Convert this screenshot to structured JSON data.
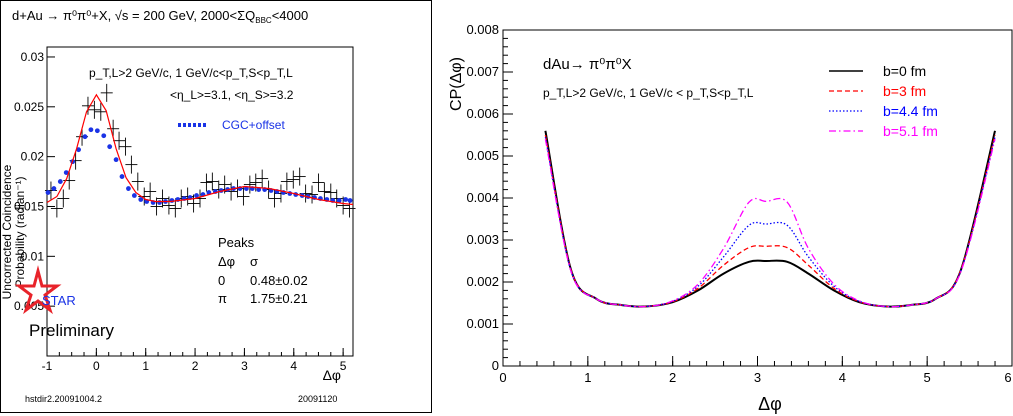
{
  "colors": {
    "black": "#000000",
    "red": "#ff0000",
    "blue": "#0000ff",
    "magenta": "#ff00ff",
    "cgc_points": "#1a33e6",
    "star": "#e8232a"
  },
  "left": {
    "header": "d+Au → π⁰π⁰+X, √s = 200 GeV, 2000<ΣQ",
    "header_sub": "BBC",
    "header_tail": "<4000",
    "ylabel_line1": "Uncorrected Coincidence",
    "ylabel_line2": "Probability (radian⁻¹)",
    "xlabel": "Δφ",
    "cut_line1": "p_T,L>2 GeV/c, 1 GeV/c<p_T,S<p_T,L",
    "cut_line2": "<η_L>=3.1, <η_S>=3.2",
    "legend_cgc": "CGC+offset",
    "peaks_title": "Peaks",
    "peaks_header": [
      "Δφ",
      "σ"
    ],
    "peaks_rows": [
      [
        "0",
        "0.48±0.02"
      ],
      [
        "π",
        "1.75±0.21"
      ]
    ],
    "logo_text": "STAR",
    "preliminary": "Preliminary",
    "footer_left": "hstdir2.20091004.2",
    "footer_right": "20091120"
  },
  "right": {
    "title": "dAu→ π⁰π⁰X",
    "subtitle": "p_T,L>2 GeV/c, 1 GeV/c < p_T,S<p_T,L",
    "ylabel": "CP(Δφ)",
    "xlabel": "Δφ"
  },
  "chart_data": [
    {
      "type": "scatter",
      "xlim": [
        -1,
        5.2
      ],
      "ylim": [
        0,
        0.031
      ],
      "x_ticks": [
        "-1",
        "0",
        "1",
        "2",
        "3",
        "4",
        "5"
      ],
      "y_ticks": [
        "0.005",
        "0.01",
        "0.015",
        "0.02",
        "0.025",
        "0.03"
      ],
      "series": [
        {
          "name": "data",
          "style": "crosses",
          "x": [
            -0.92,
            -0.8,
            -0.67,
            -0.55,
            -0.42,
            -0.29,
            -0.17,
            -0.04,
            0.09,
            0.21,
            0.34,
            0.46,
            0.59,
            0.71,
            0.84,
            0.97,
            1.09,
            1.22,
            1.34,
            1.47,
            1.6,
            1.72,
            1.85,
            1.97,
            2.1,
            2.23,
            2.35,
            2.48,
            2.6,
            2.73,
            2.86,
            2.98,
            3.11,
            3.23,
            3.36,
            3.49,
            3.61,
            3.74,
            3.86,
            3.99,
            4.12,
            4.24,
            4.37,
            4.5,
            4.62,
            4.75,
            4.87,
            5.0,
            5.13
          ],
          "y": [
            0.0166,
            0.0148,
            0.0158,
            0.0176,
            0.0196,
            0.022,
            0.0251,
            0.0247,
            0.0245,
            0.0264,
            0.0228,
            0.0216,
            0.021,
            0.0192,
            0.0175,
            0.016,
            0.0165,
            0.015,
            0.0158,
            0.0151,
            0.0148,
            0.0158,
            0.016,
            0.0153,
            0.0158,
            0.0174,
            0.0175,
            0.0167,
            0.0172,
            0.0165,
            0.0168,
            0.016,
            0.0172,
            0.0174,
            0.0178,
            0.0167,
            0.0158,
            0.0163,
            0.0175,
            0.0177,
            0.018,
            0.0163,
            0.0162,
            0.0174,
            0.0165,
            0.0164,
            0.0158,
            0.0151,
            0.0148
          ]
        },
        {
          "name": "CGC+offset",
          "style": "points",
          "x": [
            -0.98,
            -0.86,
            -0.73,
            -0.61,
            -0.48,
            -0.36,
            -0.23,
            -0.11,
            0.02,
            0.15,
            0.27,
            0.4,
            0.52,
            0.65,
            0.77,
            0.9,
            1.02,
            1.15,
            1.28,
            1.4,
            1.53,
            1.65,
            1.78,
            1.9,
            2.03,
            2.16,
            2.28,
            2.41,
            2.53,
            2.66,
            2.78,
            2.91,
            3.04,
            3.16,
            3.29,
            3.41,
            3.54,
            3.66,
            3.79,
            3.92,
            4.04,
            4.17,
            4.29,
            4.42,
            4.54,
            4.67,
            4.79,
            4.92,
            5.05,
            5.14
          ],
          "y": [
            0.0164,
            0.0168,
            0.0175,
            0.0184,
            0.0195,
            0.0207,
            0.022,
            0.0227,
            0.0226,
            0.0221,
            0.021,
            0.0197,
            0.018,
            0.0168,
            0.0161,
            0.0157,
            0.0155,
            0.0154,
            0.0154,
            0.0155,
            0.0156,
            0.0157,
            0.0158,
            0.0159,
            0.0161,
            0.0162,
            0.0164,
            0.0165,
            0.0166,
            0.0167,
            0.0168,
            0.0168,
            0.0168,
            0.0168,
            0.0167,
            0.0167,
            0.0166,
            0.0165,
            0.0164,
            0.0163,
            0.0162,
            0.0161,
            0.016,
            0.0159,
            0.0158,
            0.0157,
            0.0156,
            0.0156,
            0.0157,
            0.0156
          ]
        },
        {
          "name": "fit",
          "style": "line",
          "x": [
            -1,
            -0.8,
            -0.6,
            -0.4,
            -0.2,
            0,
            0.2,
            0.4,
            0.6,
            0.8,
            1,
            1.2,
            1.5,
            2,
            2.5,
            3,
            3.5,
            4,
            4.5,
            5,
            5.2
          ],
          "y": [
            0.0154,
            0.016,
            0.0178,
            0.0208,
            0.0245,
            0.0262,
            0.0246,
            0.0208,
            0.0179,
            0.0164,
            0.0157,
            0.0155,
            0.0155,
            0.0158,
            0.0165,
            0.017,
            0.0168,
            0.0163,
            0.0157,
            0.0153,
            0.0152
          ]
        }
      ]
    },
    {
      "type": "line",
      "xlim": [
        0,
        6
      ],
      "ylim": [
        0,
        0.008
      ],
      "x_ticks": [
        "0",
        "1",
        "2",
        "3",
        "4",
        "5",
        "6"
      ],
      "y_ticks": [
        "0.001",
        "0.002",
        "0.003",
        "0.004",
        "0.005",
        "0.006",
        "0.007",
        "0.008"
      ],
      "series": [
        {
          "name": "b=0 fm",
          "color": "#000000",
          "dash": "solid",
          "x": [
            0.5,
            0.8,
            1.1,
            1.4,
            1.7,
            2.0,
            2.3,
            2.6,
            2.9,
            3.1,
            3.35,
            3.6,
            3.9,
            4.2,
            4.5,
            4.8,
            5.1,
            5.4,
            5.8
          ],
          "y": [
            0.0056,
            0.0023,
            0.0016,
            0.00145,
            0.00142,
            0.00152,
            0.0018,
            0.0022,
            0.00248,
            0.0025,
            0.00248,
            0.0022,
            0.0018,
            0.00152,
            0.00142,
            0.00145,
            0.0016,
            0.0023,
            0.0056
          ]
        },
        {
          "name": "b=3 fm",
          "color": "#ff0000",
          "dash": "dashed",
          "x": [
            0.5,
            0.8,
            1.1,
            1.4,
            1.7,
            2.0,
            2.3,
            2.6,
            2.9,
            3.1,
            3.35,
            3.6,
            3.9,
            4.2,
            4.5,
            4.8,
            5.1,
            5.4,
            5.8
          ],
          "y": [
            0.0055,
            0.0023,
            0.0016,
            0.00145,
            0.00142,
            0.00153,
            0.00185,
            0.0024,
            0.00282,
            0.00285,
            0.00282,
            0.0024,
            0.00185,
            0.00153,
            0.00142,
            0.00145,
            0.0016,
            0.0023,
            0.0055
          ]
        },
        {
          "name": "b=4.4 fm",
          "color": "#0000ff",
          "dash": "dotted",
          "x": [
            0.5,
            0.8,
            1.1,
            1.4,
            1.7,
            2.0,
            2.3,
            2.6,
            2.9,
            3.1,
            3.35,
            3.6,
            3.9,
            4.2,
            4.5,
            4.8,
            5.1,
            5.4,
            5.8
          ],
          "y": [
            0.00545,
            0.00228,
            0.0016,
            0.00145,
            0.00142,
            0.00154,
            0.0019,
            0.0026,
            0.00335,
            0.00338,
            0.00335,
            0.0026,
            0.0019,
            0.00154,
            0.00142,
            0.00145,
            0.0016,
            0.00228,
            0.00545
          ]
        },
        {
          "name": "b=5.1 fm",
          "color": "#ff00ff",
          "dash": "dashdot",
          "x": [
            0.5,
            0.8,
            1.1,
            1.4,
            1.7,
            2.0,
            2.3,
            2.6,
            2.9,
            3.1,
            3.35,
            3.6,
            3.9,
            4.2,
            4.5,
            4.8,
            5.1,
            5.4,
            5.8
          ],
          "y": [
            0.0054,
            0.00226,
            0.0016,
            0.00145,
            0.00142,
            0.00155,
            0.00195,
            0.0028,
            0.0039,
            0.00392,
            0.0039,
            0.0028,
            0.00195,
            0.00155,
            0.00142,
            0.00145,
            0.0016,
            0.00226,
            0.0054
          ]
        }
      ]
    }
  ]
}
